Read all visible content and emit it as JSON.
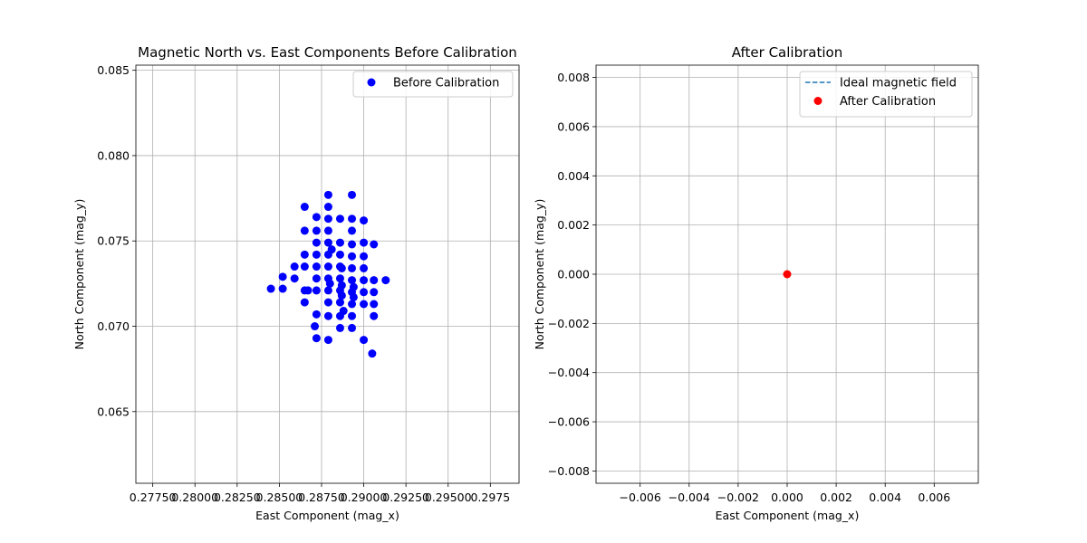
{
  "chart_data": [
    {
      "type": "scatter",
      "title": "Magnetic North vs. East Components Before Calibration",
      "xlabel": "East Component (mag_x)",
      "ylabel": "North Component (mag_y)",
      "xlim": [
        0.2765,
        0.2992
      ],
      "ylim": [
        0.0608,
        0.0853
      ],
      "xticks": [
        "0.27750",
        "0.28000",
        "0.28250",
        "0.28500",
        "0.28750",
        "0.29000",
        "0.29250",
        "0.29500",
        "0.2975"
      ],
      "xtick_values": [
        0.2775,
        0.28,
        0.2825,
        0.285,
        0.2875,
        0.29,
        0.2925,
        0.295,
        0.2975
      ],
      "yticks": [
        "0.065",
        "0.070",
        "0.075",
        "0.080",
        "0.085"
      ],
      "ytick_values": [
        0.065,
        0.07,
        0.075,
        0.08,
        0.085
      ],
      "grid": true,
      "legend": "upper right",
      "series": [
        {
          "name": "Before Calibration",
          "color": "#0000ff",
          "marker": "circle",
          "points": [
            [
              0.2845,
              0.0722
            ],
            [
              0.2852,
              0.0729
            ],
            [
              0.2852,
              0.0722
            ],
            [
              0.2859,
              0.0735
            ],
            [
              0.2859,
              0.0728
            ],
            [
              0.2865,
              0.077
            ],
            [
              0.2865,
              0.0756
            ],
            [
              0.2865,
              0.0742
            ],
            [
              0.2865,
              0.0735
            ],
            [
              0.2865,
              0.0721
            ],
            [
              0.2865,
              0.0714
            ],
            [
              0.2872,
              0.0764
            ],
            [
              0.2872,
              0.0756
            ],
            [
              0.2872,
              0.0749
            ],
            [
              0.2872,
              0.0742
            ],
            [
              0.2872,
              0.0735
            ],
            [
              0.2872,
              0.0728
            ],
            [
              0.2872,
              0.0721
            ],
            [
              0.2872,
              0.0707
            ],
            [
              0.2872,
              0.0693
            ],
            [
              0.2871,
              0.07
            ],
            [
              0.2867,
              0.0721
            ],
            [
              0.2879,
              0.0777
            ],
            [
              0.2879,
              0.077
            ],
            [
              0.2879,
              0.0763
            ],
            [
              0.2879,
              0.0756
            ],
            [
              0.2879,
              0.0749
            ],
            [
              0.2879,
              0.0742
            ],
            [
              0.2879,
              0.0735
            ],
            [
              0.2879,
              0.0728
            ],
            [
              0.2879,
              0.0721
            ],
            [
              0.2879,
              0.0714
            ],
            [
              0.2879,
              0.0706
            ],
            [
              0.2879,
              0.0692
            ],
            [
              0.288,
              0.0725
            ],
            [
              0.2881,
              0.0745
            ],
            [
              0.2886,
              0.0763
            ],
            [
              0.2886,
              0.0749
            ],
            [
              0.2886,
              0.0742
            ],
            [
              0.2886,
              0.0735
            ],
            [
              0.2886,
              0.0728
            ],
            [
              0.2886,
              0.0721
            ],
            [
              0.2886,
              0.0714
            ],
            [
              0.2886,
              0.0706
            ],
            [
              0.2886,
              0.0699
            ],
            [
              0.2887,
              0.0734
            ],
            [
              0.2887,
              0.0724
            ],
            [
              0.2887,
              0.0718
            ],
            [
              0.2888,
              0.0709
            ],
            [
              0.2893,
              0.0777
            ],
            [
              0.2893,
              0.0763
            ],
            [
              0.2893,
              0.0756
            ],
            [
              0.2893,
              0.0748
            ],
            [
              0.2893,
              0.0741
            ],
            [
              0.2893,
              0.0734
            ],
            [
              0.2893,
              0.0727
            ],
            [
              0.2893,
              0.072
            ],
            [
              0.2893,
              0.0713
            ],
            [
              0.2893,
              0.0706
            ],
            [
              0.2893,
              0.0699
            ],
            [
              0.2894,
              0.0723
            ],
            [
              0.2894,
              0.0717
            ],
            [
              0.29,
              0.0762
            ],
            [
              0.29,
              0.0749
            ],
            [
              0.29,
              0.0741
            ],
            [
              0.29,
              0.0734
            ],
            [
              0.29,
              0.0727
            ],
            [
              0.29,
              0.072
            ],
            [
              0.29,
              0.0713
            ],
            [
              0.29,
              0.0692
            ],
            [
              0.2906,
              0.0748
            ],
            [
              0.2906,
              0.0727
            ],
            [
              0.2906,
              0.072
            ],
            [
              0.2906,
              0.0713
            ],
            [
              0.2906,
              0.0706
            ],
            [
              0.2905,
              0.0684
            ],
            [
              0.2913,
              0.0727
            ]
          ]
        }
      ]
    },
    {
      "type": "scatter",
      "title": "After Calibration",
      "xlabel": "East Component (mag_x)",
      "ylabel": "North Component (mag_y)",
      "xlim": [
        -0.0078,
        0.0078
      ],
      "ylim": [
        -0.0085,
        0.0085
      ],
      "xticks": [
        "−0.006",
        "−0.004",
        "−0.002",
        "0.000",
        "0.002",
        "0.004",
        "0.006"
      ],
      "xtick_values": [
        -0.006,
        -0.004,
        -0.002,
        0.0,
        0.002,
        0.004,
        0.006
      ],
      "yticks": [
        "−0.008",
        "−0.006",
        "−0.004",
        "−0.002",
        "0.000",
        "0.002",
        "0.004",
        "0.006",
        "0.008"
      ],
      "ytick_values": [
        -0.008,
        -0.006,
        -0.004,
        -0.002,
        0.0,
        0.002,
        0.004,
        0.006,
        0.008
      ],
      "grid": true,
      "legend": "upper right",
      "series": [
        {
          "name": "Ideal magnetic field",
          "type": "line",
          "style": "dashed",
          "color": "#1f77b4",
          "points": [
            [
              0.0,
              0.0
            ]
          ]
        },
        {
          "name": "After Calibration",
          "color": "#ff0000",
          "marker": "circle",
          "points": [
            [
              0.0,
              0.0
            ]
          ]
        }
      ]
    }
  ]
}
